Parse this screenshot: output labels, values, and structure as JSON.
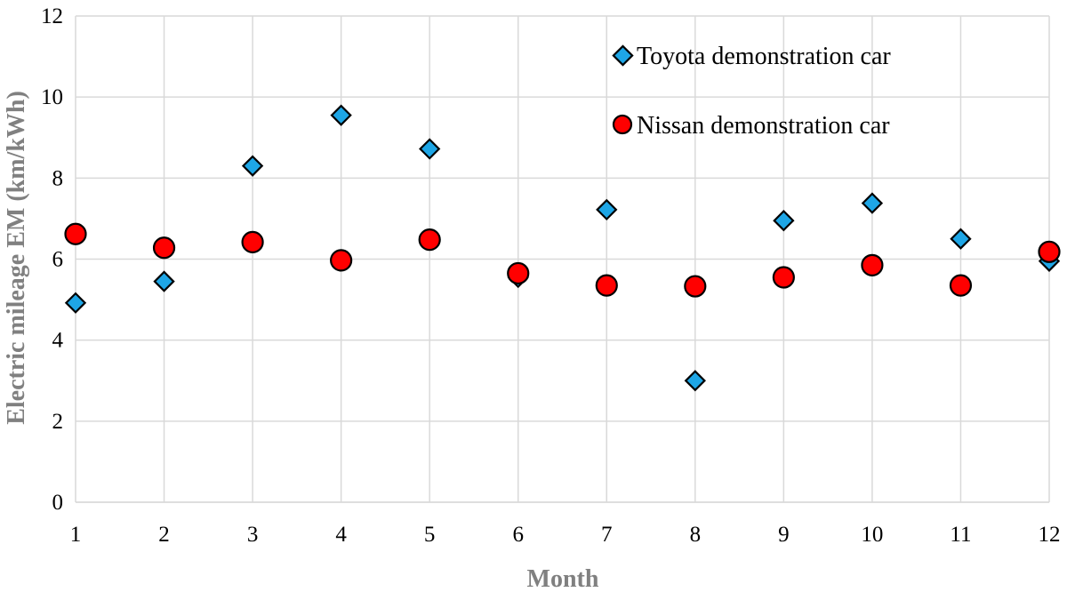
{
  "chart_data": {
    "type": "scatter",
    "title": "",
    "xlabel": "Month",
    "ylabel": "Electric mileage EM (km/kWh)",
    "xlim": [
      1,
      12
    ],
    "ylim": [
      0,
      12
    ],
    "x_ticks": [
      "1",
      "2",
      "3",
      "4",
      "5",
      "6",
      "7",
      "8",
      "9",
      "10",
      "11",
      "12"
    ],
    "y_ticks": [
      "0",
      "2",
      "4",
      "6",
      "8",
      "10",
      "12"
    ],
    "grid": "vertical and horizontal",
    "legend_position": "top-right",
    "x": [
      1,
      2,
      3,
      4,
      5,
      6,
      7,
      8,
      9,
      10,
      11,
      12
    ],
    "series": [
      {
        "name": "Toyota demonstration car",
        "marker": "diamond",
        "color": "#1ea6e6",
        "values": [
          4.92,
          5.45,
          8.3,
          9.55,
          8.72,
          5.55,
          7.22,
          3.0,
          6.95,
          7.38,
          6.5,
          5.95
        ]
      },
      {
        "name": "Nissan demonstration car",
        "marker": "circle",
        "color": "#ff0000",
        "values": [
          6.62,
          6.28,
          6.42,
          5.97,
          6.48,
          5.65,
          5.35,
          5.33,
          5.55,
          5.85,
          5.35,
          6.18
        ]
      }
    ]
  }
}
